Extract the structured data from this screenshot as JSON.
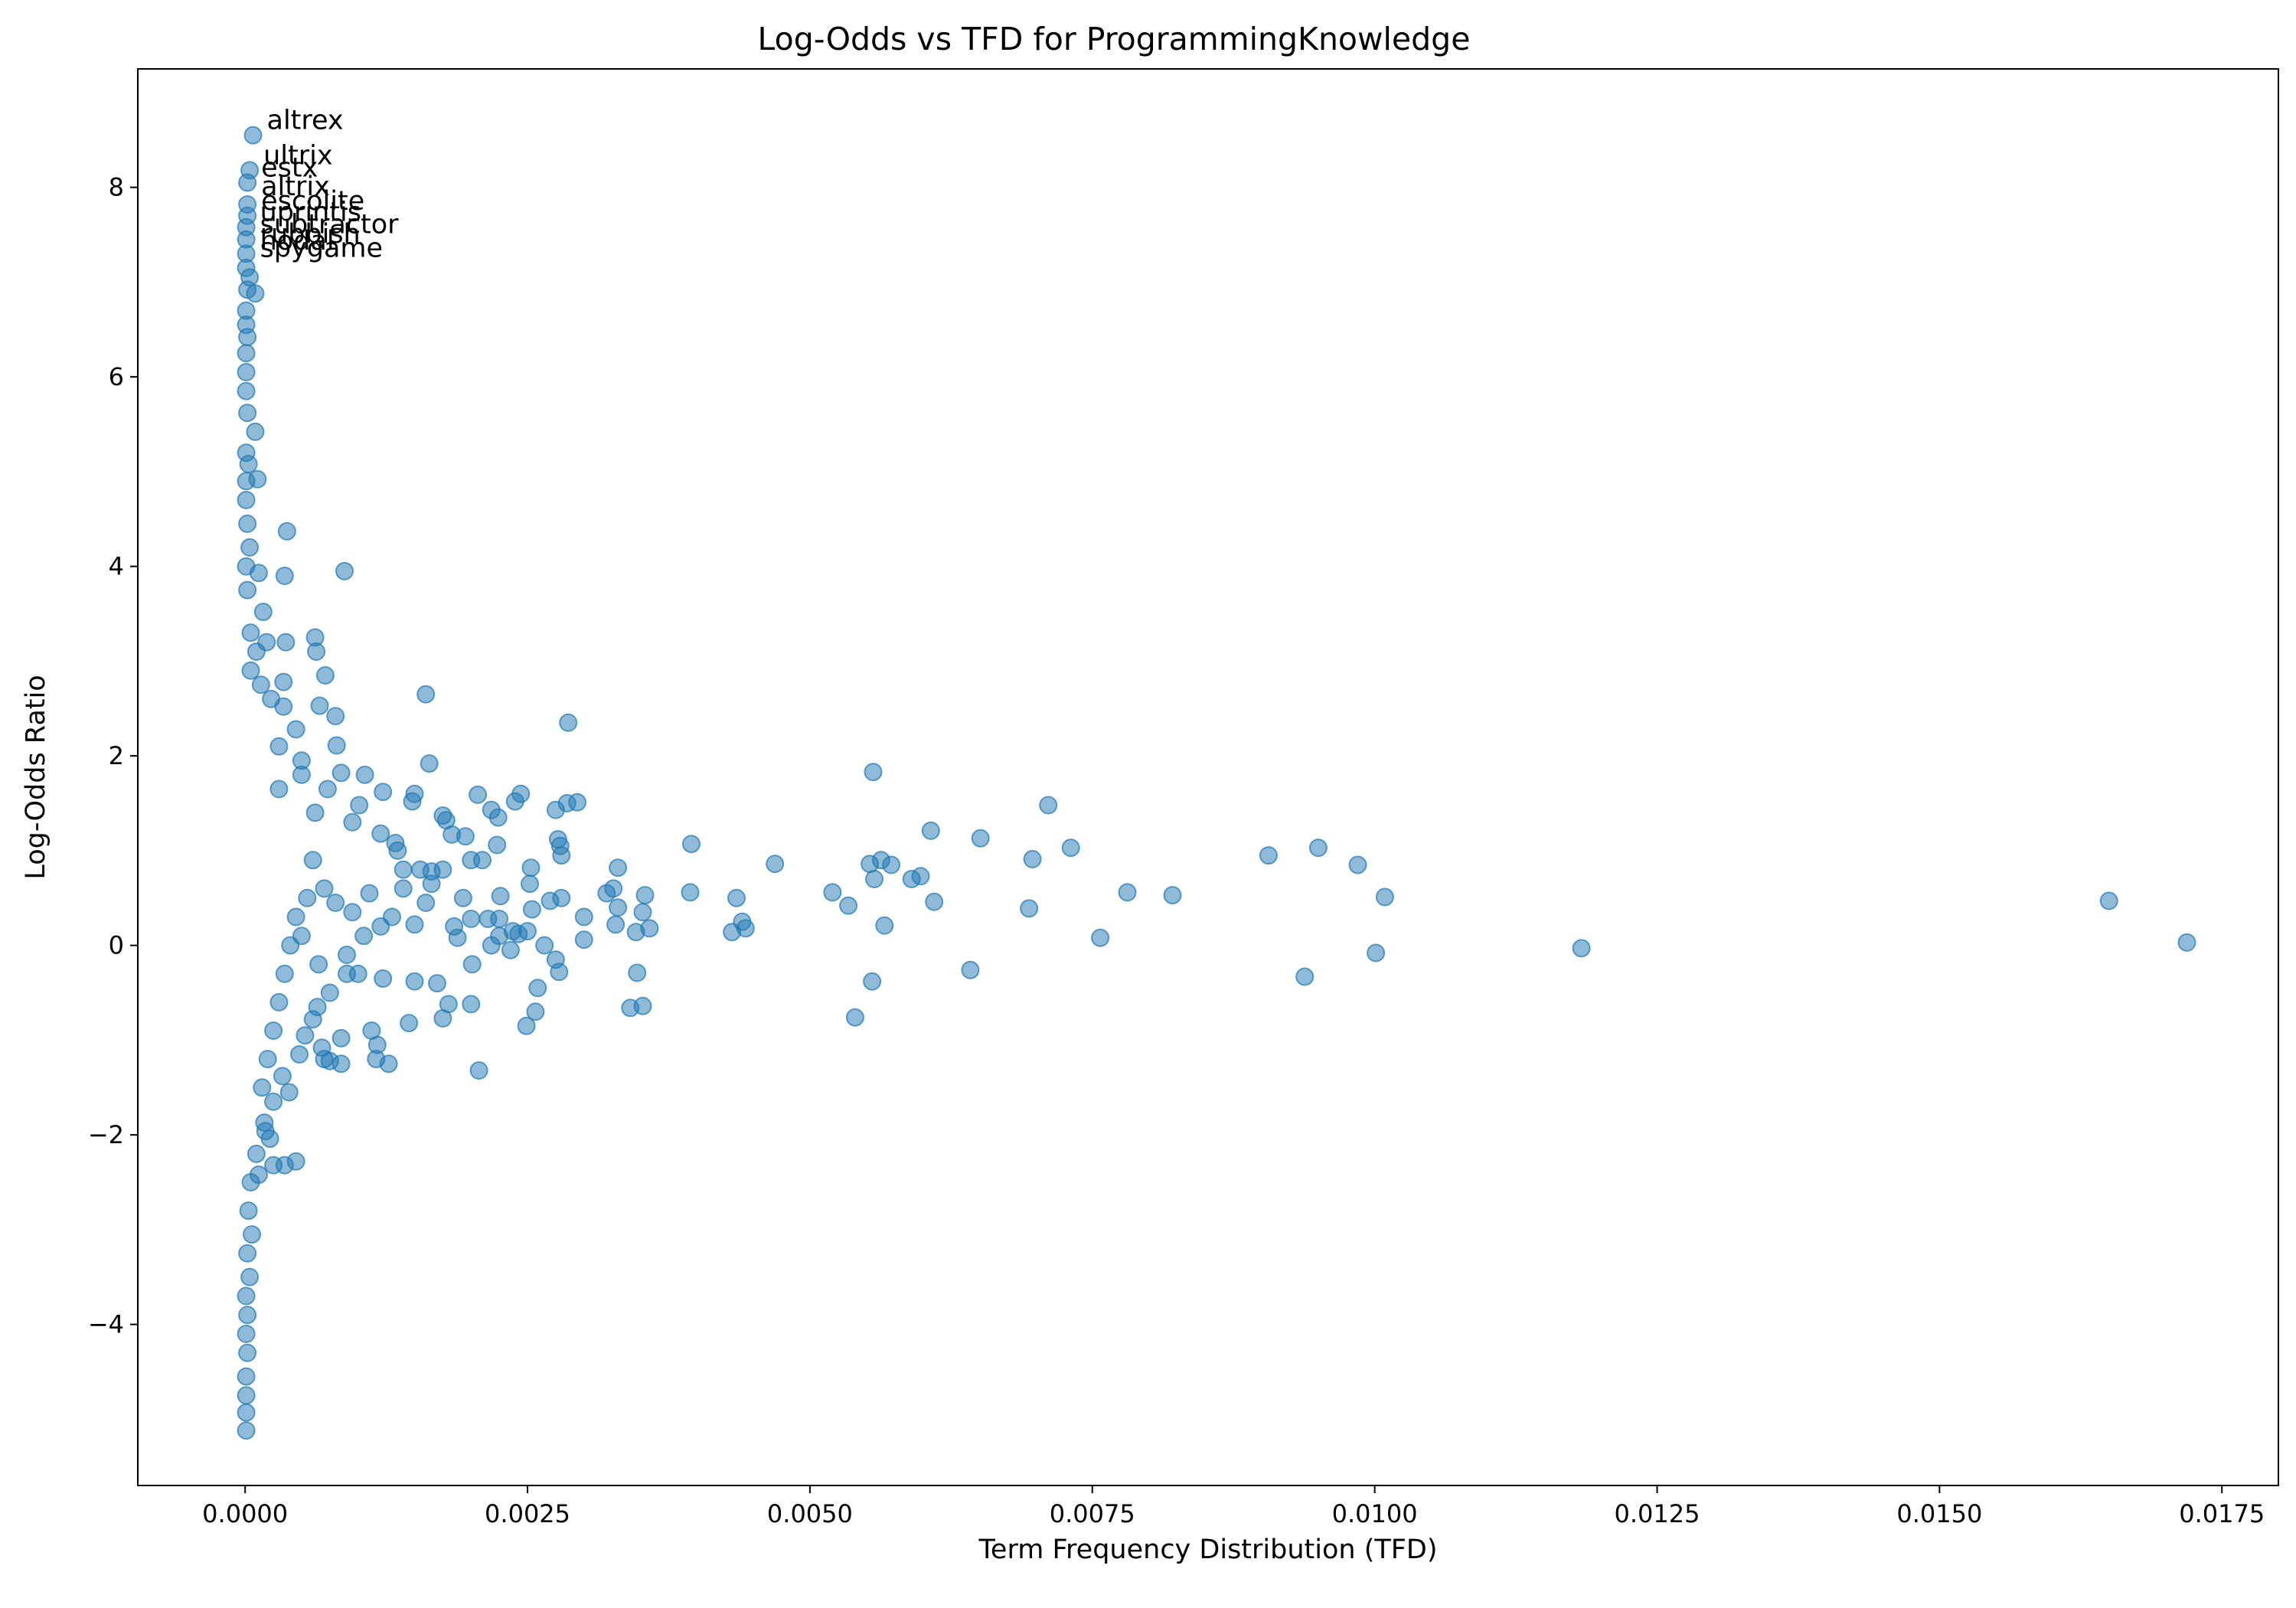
{
  "chart_data": {
    "type": "scatter",
    "title": "Log-Odds vs TFD for ProgrammingKnowledge",
    "xlabel": "Term Frequency Distribution (TFD)",
    "ylabel": "Log-Odds Ratio",
    "xlim": [
      -0.00095,
      0.018
    ],
    "ylim": [
      -5.7,
      9.25
    ],
    "xticks": [
      0.0,
      0.0025,
      0.005,
      0.0075,
      0.01,
      0.0125,
      0.015,
      0.0175
    ],
    "xtick_labels": [
      "0.0000",
      "0.0025",
      "0.0050",
      "0.0075",
      "0.0100",
      "0.0125",
      "0.0150",
      "0.0175"
    ],
    "yticks": [
      -4,
      -2,
      0,
      2,
      4,
      6,
      8
    ],
    "ytick_labels": [
      "−4",
      "−2",
      "0",
      "2",
      "4",
      "6",
      "8"
    ],
    "grid": false,
    "marker_color": "#1f77b4",
    "marker_alpha": 0.5,
    "annotations": [
      {
        "text": "altrex",
        "x": 7e-05,
        "y": 8.55
      },
      {
        "text": "ultrix",
        "x": 4e-05,
        "y": 8.18
      },
      {
        "text": "estx",
        "x": 2e-05,
        "y": 8.05
      },
      {
        "text": "altrix",
        "x": 2e-05,
        "y": 7.85
      },
      {
        "text": "escolite",
        "x": 2e-05,
        "y": 7.7
      },
      {
        "text": "uprintis",
        "x": 1e-05,
        "y": 7.58
      },
      {
        "text": "subtractor",
        "x": 1e-05,
        "y": 7.45
      },
      {
        "text": "rubbish",
        "x": 1e-05,
        "y": 7.35
      },
      {
        "text": "nodal",
        "x": 1e-05,
        "y": 7.28
      },
      {
        "text": "spygame",
        "x": 1e-05,
        "y": 7.2
      }
    ],
    "series": [
      {
        "points": [
          [
            7e-05,
            8.55
          ],
          [
            4e-05,
            8.18
          ],
          [
            2e-05,
            8.05
          ],
          [
            2e-05,
            7.82
          ],
          [
            2e-05,
            7.7
          ],
          [
            1e-05,
            7.58
          ],
          [
            1e-05,
            7.45
          ],
          [
            1e-05,
            7.3
          ],
          [
            1e-05,
            7.15
          ],
          [
            4e-05,
            7.05
          ],
          [
            2e-05,
            6.92
          ],
          [
            9e-05,
            6.88
          ],
          [
            1e-05,
            6.7
          ],
          [
            1e-05,
            6.55
          ],
          [
            2e-05,
            6.42
          ],
          [
            1e-05,
            6.25
          ],
          [
            1e-05,
            6.05
          ],
          [
            1e-05,
            5.85
          ],
          [
            2e-05,
            5.62
          ],
          [
            9e-05,
            5.42
          ],
          [
            1e-05,
            5.2
          ],
          [
            3e-05,
            5.08
          ],
          [
            1e-05,
            4.9
          ],
          [
            0.00011,
            4.92
          ],
          [
            1e-05,
            4.7
          ],
          [
            2e-05,
            4.45
          ],
          [
            4e-05,
            4.2
          ],
          [
            1e-05,
            4.0
          ],
          [
            0.00012,
            3.93
          ],
          [
            2e-05,
            3.75
          ],
          [
            0.00037,
            4.37
          ],
          [
            0.00035,
            3.9
          ],
          [
            0.00088,
            3.95
          ],
          [
            0.00016,
            3.52
          ],
          [
            5e-05,
            3.3
          ],
          [
            0.0001,
            3.1
          ],
          [
            0.00019,
            3.2
          ],
          [
            0.00036,
            3.2
          ],
          [
            0.00062,
            3.25
          ],
          [
            0.00063,
            3.1
          ],
          [
            5e-05,
            2.9
          ],
          [
            0.00014,
            2.75
          ],
          [
            0.00034,
            2.78
          ],
          [
            0.00071,
            2.85
          ],
          [
            0.00023,
            2.6
          ],
          [
            0.00034,
            2.52
          ],
          [
            0.00066,
            2.53
          ],
          [
            0.0008,
            2.42
          ],
          [
            0.0016,
            2.65
          ],
          [
            0.00286,
            2.35
          ],
          [
            0.00045,
            2.28
          ],
          [
            0.0003,
            2.1
          ],
          [
            0.00081,
            2.11
          ],
          [
            0.0005,
            1.95
          ],
          [
            0.00163,
            1.92
          ],
          [
            0.00556,
            1.83
          ],
          [
            0.0005,
            1.8
          ],
          [
            0.00085,
            1.82
          ],
          [
            0.00106,
            1.8
          ],
          [
            0.0003,
            1.65
          ],
          [
            0.00073,
            1.65
          ],
          [
            0.00122,
            1.62
          ],
          [
            0.0015,
            1.6
          ],
          [
            0.00206,
            1.59
          ],
          [
            0.00244,
            1.6
          ],
          [
            0.00148,
            1.52
          ],
          [
            0.00239,
            1.52
          ],
          [
            0.00275,
            1.43
          ],
          [
            0.00294,
            1.51
          ],
          [
            0.00285,
            1.5
          ],
          [
            0.00101,
            1.48
          ],
          [
            0.00218,
            1.43
          ],
          [
            0.00224,
            1.35
          ],
          [
            0.00178,
            1.32
          ],
          [
            0.00175,
            1.37
          ],
          [
            0.00062,
            1.4
          ],
          [
            0.00095,
            1.3
          ],
          [
            0.0012,
            1.18
          ],
          [
            0.00183,
            1.17
          ],
          [
            0.00195,
            1.15
          ],
          [
            0.00277,
            1.12
          ],
          [
            0.00279,
            1.05
          ],
          [
            0.00223,
            1.06
          ],
          [
            0.00133,
            1.08
          ],
          [
            0.00135,
            1.0
          ],
          [
            0.0028,
            0.95
          ],
          [
            0.002,
            0.9
          ],
          [
            0.0021,
            0.9
          ],
          [
            0.00175,
            0.8
          ],
          [
            0.00155,
            0.8
          ],
          [
            0.00165,
            0.78
          ],
          [
            0.0014,
            0.8
          ],
          [
            0.00165,
            0.65
          ],
          [
            0.00253,
            0.82
          ],
          [
            0.0033,
            0.82
          ],
          [
            0.00395,
            1.07
          ],
          [
            0.00469,
            0.86
          ],
          [
            0.00607,
            1.21
          ],
          [
            0.00651,
            1.13
          ],
          [
            0.00711,
            1.48
          ],
          [
            0.00697,
            0.91
          ],
          [
            0.00731,
            1.03
          ],
          [
            0.00906,
            0.95
          ],
          [
            0.0095,
            1.03
          ],
          [
            0.00985,
            0.85
          ],
          [
            0.00563,
            0.9
          ],
          [
            0.00553,
            0.86
          ],
          [
            0.00572,
            0.85
          ],
          [
            0.00598,
            0.73
          ],
          [
            0.0059,
            0.7
          ],
          [
            0.00557,
            0.7
          ],
          [
            0.0061,
            0.46
          ],
          [
            0.0052,
            0.56
          ],
          [
            0.00534,
            0.42
          ],
          [
            0.00394,
            0.56
          ],
          [
            0.00435,
            0.5
          ],
          [
            0.0044,
            0.25
          ],
          [
            0.00443,
            0.18
          ],
          [
            0.00431,
            0.14
          ],
          [
            0.00354,
            0.53
          ],
          [
            0.00352,
            0.35
          ],
          [
            0.00358,
            0.18
          ],
          [
            0.00346,
            0.14
          ],
          [
            0.0032,
            0.55
          ],
          [
            0.00326,
            0.6
          ],
          [
            0.0033,
            0.4
          ],
          [
            0.00328,
            0.22
          ],
          [
            0.003,
            0.3
          ],
          [
            0.0028,
            0.5
          ],
          [
            0.0027,
            0.47
          ],
          [
            0.00252,
            0.65
          ],
          [
            0.00254,
            0.38
          ],
          [
            0.0025,
            0.15
          ],
          [
            0.00242,
            0.12
          ],
          [
            0.00237,
            0.15
          ],
          [
            0.00226,
            0.52
          ],
          [
            0.00225,
            0.28
          ],
          [
            0.00225,
            0.1
          ],
          [
            0.00215,
            0.28
          ],
          [
            0.00218,
            0.0
          ],
          [
            0.00235,
            -0.05
          ],
          [
            0.00265,
            0.0
          ],
          [
            0.003,
            0.06
          ],
          [
            0.00275,
            -0.15
          ],
          [
            0.00278,
            -0.28
          ],
          [
            0.00259,
            -0.45
          ],
          [
            0.00257,
            -0.7
          ],
          [
            0.00249,
            -0.85
          ],
          [
            0.00207,
            -1.32
          ],
          [
            0.00201,
            -0.2
          ],
          [
            0.002,
            -0.62
          ],
          [
            0.0018,
            -0.62
          ],
          [
            0.00175,
            -0.77
          ],
          [
            0.0017,
            -0.4
          ],
          [
            0.00188,
            0.08
          ],
          [
            0.00193,
            0.5
          ],
          [
            0.002,
            0.28
          ],
          [
            0.00185,
            0.2
          ],
          [
            0.0015,
            -0.38
          ],
          [
            0.00145,
            -0.82
          ],
          [
            0.00127,
            -1.25
          ],
          [
            0.00117,
            -1.05
          ],
          [
            0.00116,
            -1.2
          ],
          [
            0.00112,
            -0.9
          ],
          [
            0.00122,
            -0.35
          ],
          [
            0.001,
            -0.3
          ],
          [
            0.0009,
            -0.3
          ],
          [
            0.00085,
            -1.25
          ],
          [
            0.00085,
            -0.98
          ],
          [
            0.00075,
            -1.22
          ],
          [
            0.00068,
            -1.08
          ],
          [
            0.0007,
            -1.2
          ],
          [
            0.00064,
            -0.65
          ],
          [
            0.0006,
            -0.78
          ],
          [
            0.00053,
            -0.95
          ],
          [
            0.00048,
            -1.15
          ],
          [
            0.00039,
            -1.55
          ],
          [
            0.00033,
            -1.38
          ],
          [
            0.00025,
            -1.65
          ],
          [
            0.00017,
            -1.87
          ],
          [
            0.00022,
            -2.04
          ],
          [
            0.00018,
            -1.96
          ],
          [
            0.00045,
            -2.28
          ],
          [
            0.00035,
            -2.32
          ],
          [
            0.00025,
            -2.32
          ],
          [
            0.00012,
            -2.42
          ],
          [
            0.0001,
            -2.2
          ],
          [
            5e-05,
            -2.5
          ],
          [
            3e-05,
            -2.8
          ],
          [
            6e-05,
            -3.05
          ],
          [
            2e-05,
            -3.25
          ],
          [
            4e-05,
            -3.5
          ],
          [
            1e-05,
            -3.7
          ],
          [
            2e-05,
            -3.9
          ],
          [
            1e-05,
            -4.1
          ],
          [
            2e-05,
            -4.3
          ],
          [
            1e-05,
            -4.55
          ],
          [
            1e-05,
            -4.75
          ],
          [
            1e-05,
            -4.93
          ],
          [
            1e-05,
            -5.12
          ],
          [
            0.0165,
            0.47
          ],
          [
            0.01719,
            0.03
          ],
          [
            0.01183,
            -0.03
          ],
          [
            0.01009,
            0.51
          ],
          [
            0.01001,
            -0.08
          ],
          [
            0.00938,
            -0.33
          ],
          [
            0.00821,
            0.53
          ],
          [
            0.00781,
            0.56
          ],
          [
            0.00757,
            0.08
          ],
          [
            0.00694,
            0.39
          ],
          [
            0.00642,
            -0.26
          ],
          [
            0.00566,
            0.21
          ],
          [
            0.00555,
            -0.38
          ],
          [
            0.0054,
            -0.76
          ],
          [
            0.00352,
            -0.64
          ],
          [
            0.00341,
            -0.66
          ],
          [
            0.00347,
            -0.29
          ],
          [
            0.0015,
            0.22
          ],
          [
            0.0012,
            0.2
          ],
          [
            0.00105,
            0.1
          ],
          [
            0.00095,
            0.35
          ],
          [
            0.0008,
            0.45
          ],
          [
            0.0007,
            0.6
          ],
          [
            0.0006,
            0.9
          ],
          [
            0.00055,
            0.5
          ],
          [
            0.00045,
            0.3
          ],
          [
            0.0004,
            0.0
          ],
          [
            0.00035,
            -0.3
          ],
          [
            0.0003,
            -0.6
          ],
          [
            0.00025,
            -0.9
          ],
          [
            0.0002,
            -1.2
          ],
          [
            0.00015,
            -1.5
          ],
          [
            0.0005,
            0.1
          ],
          [
            0.00065,
            -0.2
          ],
          [
            0.00075,
            -0.5
          ],
          [
            0.0009,
            -0.1
          ],
          [
            0.0011,
            0.55
          ],
          [
            0.0013,
            0.3
          ],
          [
            0.0014,
            0.6
          ],
          [
            0.0016,
            0.45
          ]
        ]
      }
    ]
  }
}
